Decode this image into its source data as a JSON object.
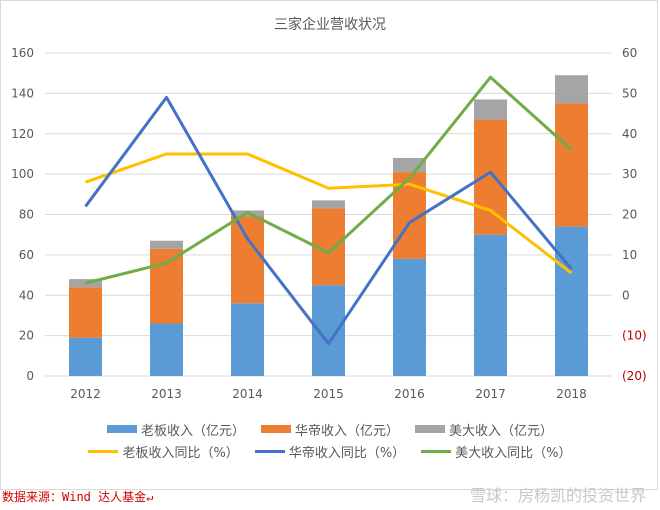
{
  "chart_data": {
    "type": "bar",
    "title": "三家企业营收状况",
    "categories": [
      "2012",
      "2013",
      "2014",
      "2015",
      "2016",
      "2017",
      "2018"
    ],
    "y_left": {
      "range": [
        0,
        160
      ],
      "ticks": [
        "0",
        "20",
        "40",
        "60",
        "80",
        "100",
        "120",
        "140",
        "160"
      ]
    },
    "y_right": {
      "range": [
        -20,
        60
      ],
      "ticks": [
        "(20)",
        "(10)",
        "0",
        "10",
        "20",
        "30",
        "40",
        "50",
        "60"
      ],
      "negative_color": "#c00000"
    },
    "bar_series": [
      {
        "name": "老板收入（亿元）",
        "color": "#5b9bd5",
        "values": [
          19,
          26,
          36,
          45,
          58,
          70,
          74
        ]
      },
      {
        "name": "华帝收入（亿元）",
        "color": "#ed7d31",
        "values": [
          25,
          37,
          43,
          38,
          43,
          57,
          61
        ]
      },
      {
        "name": "美大收入（亿元）",
        "color": "#a5a5a5",
        "values": [
          4,
          4,
          3,
          4,
          7,
          10,
          14
        ]
      }
    ],
    "line_series": [
      {
        "name": "老板收入同比（%）",
        "color": "#ffc000",
        "axis": "right",
        "values": [
          28,
          35,
          35,
          26.5,
          27.5,
          21,
          5.5
        ]
      },
      {
        "name": "华帝收入同比（%）",
        "color": "#4472c4",
        "axis": "right",
        "values": [
          22,
          49,
          14,
          -12,
          18,
          30.5,
          6.5
        ]
      },
      {
        "name": "美大收入同比（%）",
        "color": "#70ad47",
        "axis": "right",
        "values": [
          3,
          8,
          20.5,
          10.5,
          29,
          54,
          36
        ]
      }
    ],
    "grid": true,
    "legend": "bottom"
  },
  "footer": {
    "source": "数据来源：Wind 达人基金↵",
    "watermark": "雪球：房杨凯的投资世界"
  }
}
